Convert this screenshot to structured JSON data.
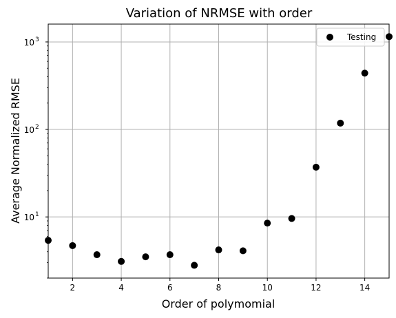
{
  "chart_data": {
    "type": "scatter",
    "title": "Variation of NRMSE with order",
    "xlabel": "Order of polymomial",
    "ylabel": "Average Normalized RMSE",
    "xlim": [
      1,
      15
    ],
    "ylim": [
      2.0,
      1600
    ],
    "yscale": "log",
    "grid": true,
    "legend_position": "top-right",
    "x_ticks": [
      2,
      4,
      6,
      8,
      10,
      12,
      14
    ],
    "x_tick_labels": [
      "2",
      "4",
      "6",
      "8",
      "10",
      "12",
      "14"
    ],
    "y_ticks": [
      10,
      100,
      1000
    ],
    "y_tick_labels": [
      {
        "base": "10",
        "exp": "1"
      },
      {
        "base": "10",
        "exp": "2"
      },
      {
        "base": "10",
        "exp": "3"
      }
    ],
    "series": [
      {
        "name": "Testing",
        "color": "#000000",
        "x": [
          1,
          2,
          3,
          4,
          5,
          6,
          7,
          8,
          9,
          10,
          11,
          12,
          13,
          14,
          15
        ],
        "y": [
          5.4,
          4.7,
          3.7,
          3.1,
          3.5,
          3.7,
          2.8,
          4.2,
          4.1,
          8.5,
          9.6,
          37,
          118,
          440,
          1150
        ]
      }
    ]
  }
}
